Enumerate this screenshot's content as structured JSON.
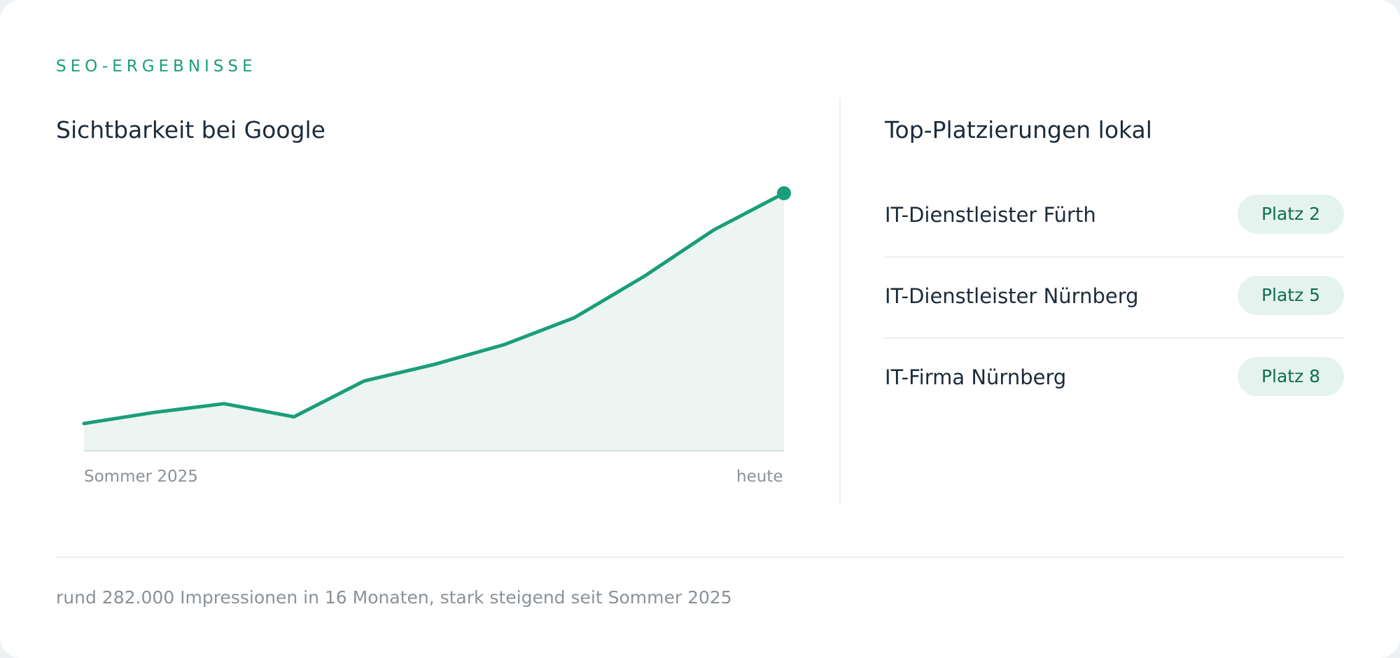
{
  "eyebrow": "SEO-ERGEBNISSE",
  "visibility": {
    "title": "Sichtbarkeit bei Google"
  },
  "chart_data": {
    "type": "area",
    "title": "Sichtbarkeit bei Google",
    "x_start_label": "Sommer 2025",
    "x_end_label": "heute",
    "values": [
      10.6,
      14.9,
      18.3,
      13.2,
      27.1,
      33.5,
      41.2,
      51.6,
      67.7,
      85.8,
      100
    ],
    "ylim": [
      0,
      100
    ],
    "grid": false,
    "legend": "none",
    "colors": {
      "line": "#1a9e7a",
      "fill": "#ecf5f2",
      "baseline": "#d5dde0"
    },
    "highlight_last_point": true
  },
  "rankings": {
    "title": "Top-Platzierungen lokal",
    "items": [
      {
        "name": "IT-Dienstleister Fürth",
        "badge": "Platz 2"
      },
      {
        "name": "IT-Dienstleister Nürnberg",
        "badge": "Platz 5"
      },
      {
        "name": "IT-Firma Nürnberg",
        "badge": "Platz 8"
      }
    ]
  },
  "summary": "rund 282.000 Impressionen in 16 Monaten, stark steigend seit Sommer 2025",
  "colors": {
    "accent": "#1a9e7a",
    "heading": "#1c2b3a",
    "muted": "#8a9298",
    "badge_bg": "#e5f3ee",
    "badge_text": "#0f6e52"
  }
}
